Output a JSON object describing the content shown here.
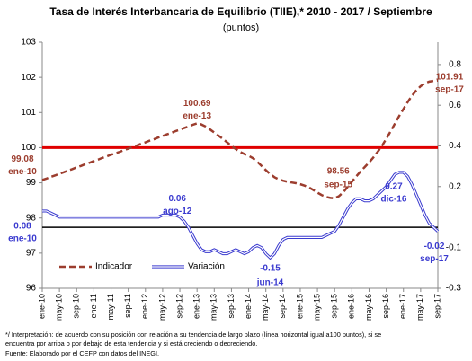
{
  "chart_data": {
    "type": "line",
    "title": "Tasa de Interés Interbancaria de Equilibrio (TIIE),* 2010 - 2017 / Septiembre",
    "subtitle": "(puntos)",
    "categories": [
      "ene-10",
      null,
      null,
      null,
      "may-10",
      null,
      null,
      null,
      "sep-10",
      null,
      null,
      null,
      "ene-11",
      null,
      null,
      null,
      "may-11",
      null,
      null,
      null,
      "sep-11",
      null,
      null,
      null,
      "ene-12",
      null,
      null,
      null,
      "may-12",
      null,
      null,
      null,
      "sep-12",
      null,
      null,
      null,
      "ene-13",
      null,
      null,
      null,
      "may-13",
      null,
      null,
      null,
      "sep-13",
      null,
      null,
      null,
      "ene-14",
      null,
      null,
      null,
      "may-14",
      null,
      null,
      null,
      "sep-14",
      null,
      null,
      null,
      "ene-15",
      null,
      null,
      null,
      "may-15",
      null,
      null,
      null,
      "sep-15",
      null,
      null,
      null,
      "ene-16",
      null,
      null,
      null,
      "may-16",
      null,
      null,
      null,
      "sep-16",
      null,
      null,
      null,
      "ene-17",
      null,
      null,
      null,
      "may-17",
      null,
      null,
      null,
      "sep-17"
    ],
    "series": [
      {
        "name": "Indicador",
        "color": "#9c3d2e",
        "dash": true,
        "values": [
          99.08,
          99.12,
          99.17,
          99.21,
          99.26,
          99.3,
          99.35,
          99.39,
          99.44,
          99.48,
          99.53,
          99.57,
          99.62,
          99.66,
          99.71,
          99.75,
          99.8,
          99.84,
          99.88,
          99.93,
          99.97,
          100.02,
          100.06,
          100.11,
          100.15,
          100.2,
          100.24,
          100.29,
          100.33,
          100.38,
          100.42,
          100.47,
          100.51,
          100.56,
          100.6,
          100.65,
          100.69,
          100.66,
          100.6,
          100.52,
          100.43,
          100.34,
          100.25,
          100.15,
          100.05,
          99.96,
          99.88,
          99.82,
          99.77,
          99.7,
          99.6,
          99.48,
          99.36,
          99.25,
          99.16,
          99.1,
          99.06,
          99.03,
          99.01,
          98.99,
          98.96,
          98.92,
          98.87,
          98.8,
          98.72,
          98.65,
          98.6,
          98.57,
          98.56,
          98.62,
          98.73,
          98.88,
          99.03,
          99.18,
          99.32,
          99.45,
          99.58,
          99.72,
          99.88,
          100.05,
          100.25,
          100.46,
          100.68,
          100.9,
          101.1,
          101.3,
          101.48,
          101.63,
          101.75,
          101.83,
          101.88,
          101.9,
          101.91
        ]
      },
      {
        "name": "Variación",
        "color": "#3a3acf",
        "axis": "y2",
        "values": [
          0.08,
          0.08,
          0.07,
          0.06,
          0.05,
          0.05,
          0.05,
          0.05,
          0.05,
          0.05,
          0.05,
          0.05,
          0.05,
          0.05,
          0.05,
          0.05,
          0.05,
          0.05,
          0.05,
          0.05,
          0.05,
          0.05,
          0.05,
          0.05,
          0.05,
          0.05,
          0.05,
          0.05,
          0.06,
          0.06,
          0.06,
          0.06,
          0.05,
          0.03,
          0.0,
          -0.04,
          -0.08,
          -0.11,
          -0.12,
          -0.12,
          -0.11,
          -0.12,
          -0.13,
          -0.13,
          -0.12,
          -0.11,
          -0.12,
          -0.13,
          -0.12,
          -0.1,
          -0.09,
          -0.1,
          -0.13,
          -0.15,
          -0.13,
          -0.09,
          -0.06,
          -0.05,
          -0.05,
          -0.05,
          -0.05,
          -0.05,
          -0.05,
          -0.05,
          -0.05,
          -0.05,
          -0.04,
          -0.03,
          -0.02,
          0.01,
          0.05,
          0.09,
          0.12,
          0.14,
          0.14,
          0.13,
          0.13,
          0.14,
          0.16,
          0.18,
          0.2,
          0.23,
          0.26,
          0.27,
          0.27,
          0.25,
          0.21,
          0.16,
          0.11,
          0.06,
          0.02,
          0.0,
          -0.02
        ]
      }
    ],
    "ylim": [
      96,
      103
    ],
    "yticks": [
      96,
      97,
      98,
      99,
      100,
      101,
      102,
      103
    ],
    "y2lim": [
      -0.3,
      0.91
    ],
    "y2ticks": [
      -0.3,
      -0.1,
      0.2,
      0.4,
      0.6,
      0.8
    ],
    "reference_lines": [
      {
        "axis": "y",
        "value": 100,
        "color": "#e00000"
      },
      {
        "axis": "y2",
        "value": 0,
        "color": "#000000"
      }
    ],
    "annotations": [
      {
        "series": 0,
        "index": 0,
        "date": "ene-10"
      },
      {
        "series": 0,
        "index": 36,
        "date": "ene-13"
      },
      {
        "series": 0,
        "index": 68,
        "date": "sep-15"
      },
      {
        "series": 0,
        "index": 92,
        "date": "sep-17"
      },
      {
        "series": 1,
        "index": 0,
        "date": "ene-10"
      },
      {
        "series": 1,
        "index": 31,
        "date": "ago-12"
      },
      {
        "series": 1,
        "index": 53,
        "date": "jun-14"
      },
      {
        "series": 1,
        "index": 83,
        "date": "dic-16"
      },
      {
        "series": 1,
        "index": 92,
        "date": "sep-17"
      }
    ],
    "legend": "lower left",
    "notes": [
      "*/ Interpretación: de acuerdo con su posición con relación a su tendencia de largo plazo (línea horizontal igual a100 puntos), si se",
      "encuentra por arriba o por debajo de esta tendencia y si está creciendo o decreciendo.",
      "Fuente: Elaborado por el CEFP con datos del INEGI."
    ]
  }
}
